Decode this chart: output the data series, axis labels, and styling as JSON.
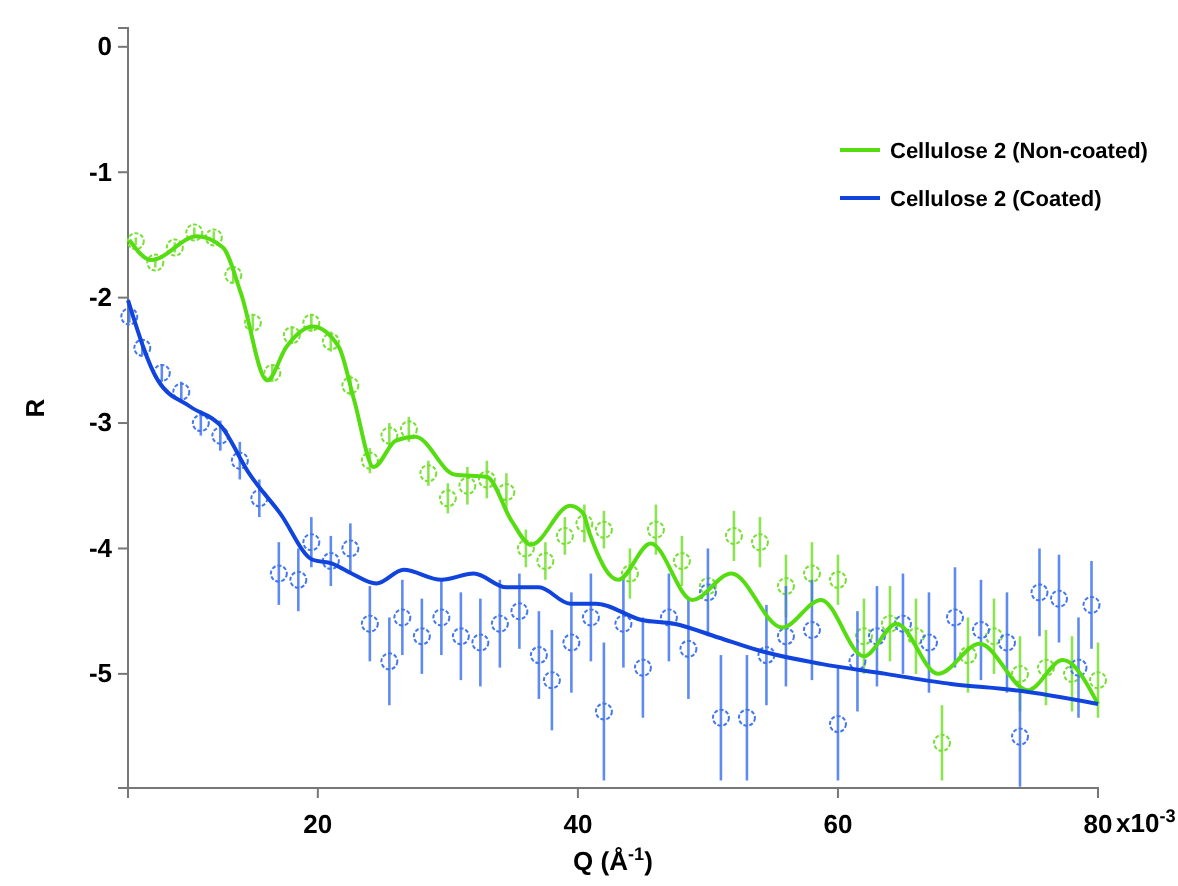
{
  "chart_data": {
    "type": "scatter",
    "xlabel": "Q (Å$^{-1}$)",
    "ylabel": "R",
    "xlim": [
      5.4,
      80
    ],
    "ylim": [
      -5.91,
      0.15
    ],
    "xticks": [
      20,
      40,
      60,
      80
    ],
    "yticks": [
      0,
      -1,
      -2,
      -3,
      -4,
      -5
    ],
    "legend": "top right",
    "annotations": [
      "x10$^{-3}$"
    ],
    "series": [
      {
        "marker": "circle",
        "color": "#77e033",
        "x": [
          6,
          7.5,
          9,
          10.5,
          12,
          13.5,
          15,
          16.5,
          18,
          19.5,
          21,
          22.5,
          24,
          25.5,
          27,
          28.5,
          30,
          31.5,
          33,
          34.5,
          36,
          37.5,
          39,
          40.5,
          42,
          44,
          46,
          48,
          50,
          52,
          54,
          56,
          58,
          60,
          62,
          64,
          66,
          68,
          70,
          72,
          74,
          76,
          78,
          80
        ],
        "values": [
          -1.55,
          -1.72,
          -1.6,
          -1.48,
          -1.52,
          -1.82,
          -2.2,
          -2.6,
          -2.3,
          -2.2,
          -2.35,
          -2.7,
          -3.3,
          -3.1,
          -3.05,
          -3.4,
          -3.6,
          -3.5,
          -3.45,
          -3.55,
          -4.0,
          -4.1,
          -3.9,
          -3.8,
          -3.85,
          -4.2,
          -3.85,
          -4.1,
          -4.3,
          -3.9,
          -3.95,
          -4.3,
          -4.2,
          -4.25,
          -4.7,
          -4.6,
          -4.7,
          -5.55,
          -4.85,
          -4.7,
          -5.0,
          -4.95,
          -5.0,
          -5.05
        ],
        "errors": [
          0.03,
          0.04,
          0.04,
          0.04,
          0.05,
          0.06,
          0.06,
          0.07,
          0.07,
          0.07,
          0.08,
          0.08,
          0.1,
          0.1,
          0.1,
          0.1,
          0.12,
          0.15,
          0.15,
          0.15,
          0.15,
          0.15,
          0.15,
          0.15,
          0.15,
          0.2,
          0.2,
          0.2,
          null,
          0.2,
          0.2,
          0.25,
          0.25,
          0.2,
          0.3,
          0.3,
          0.3,
          0.3,
          0.3,
          0.3,
          0.3,
          0.3,
          0.3,
          0.3
        ]
      },
      {
        "marker": "circle",
        "color": "#4477ee",
        "x": [
          5.5,
          6.5,
          8,
          9.5,
          11,
          12.5,
          14,
          15.5,
          17,
          18.5,
          19.5,
          21,
          22.5,
          24,
          25.5,
          26.5,
          28,
          29.5,
          31,
          32.5,
          34,
          35.5,
          37,
          38,
          39.5,
          41,
          42,
          43.5,
          45,
          47,
          48.5,
          50,
          51,
          53,
          54.5,
          56,
          58,
          60,
          61.5,
          63,
          65,
          67,
          69,
          71,
          73,
          74,
          75.5,
          77,
          78.5,
          79.5
        ],
        "values": [
          -2.15,
          -2.4,
          -2.6,
          -2.75,
          -3.0,
          -3.1,
          -3.3,
          -3.6,
          -4.2,
          -4.25,
          -3.95,
          -4.1,
          -4.0,
          -4.6,
          -4.9,
          -4.55,
          -4.7,
          -4.55,
          -4.7,
          -4.75,
          -4.6,
          -4.5,
          -4.85,
          -5.05,
          -4.75,
          -4.55,
          -5.3,
          -4.6,
          -4.95,
          -4.55,
          -4.8,
          -4.35,
          -5.35,
          -5.35,
          -4.85,
          -4.7,
          -4.65,
          -5.4,
          -4.9,
          -4.7,
          -4.6,
          -4.75,
          -4.55,
          -4.65,
          -4.75,
          -5.5,
          -4.35,
          -4.4,
          -4.95,
          -4.45
        ],
        "errors": [
          0.05,
          0.06,
          0.07,
          0.08,
          0.1,
          0.12,
          0.15,
          0.15,
          0.25,
          0.25,
          0.2,
          0.2,
          0.2,
          0.3,
          0.35,
          0.3,
          0.3,
          0.3,
          0.35,
          0.35,
          0.35,
          0.3,
          0.35,
          0.4,
          0.4,
          0.35,
          0.55,
          0.35,
          0.4,
          0.35,
          0.4,
          0.35,
          0.5,
          0.5,
          0.4,
          0.4,
          0.4,
          0.45,
          0.4,
          0.4,
          0.4,
          0.4,
          0.4,
          0.4,
          0.4,
          0.4,
          0.35,
          0.35,
          0.4,
          0.35
        ]
      },
      {
        "type": "line",
        "name": "Cellulose 2 (Non-coated)",
        "color": "#55dd11",
        "x": [
          5.5,
          7.2,
          10.7,
          12.7,
          14.1,
          16.1,
          17.6,
          19.6,
          21.6,
          22.8,
          24.3,
          26,
          27.5,
          30.5,
          33,
          34.9,
          36.4,
          39.4,
          40.4,
          40.9,
          43.1,
          45.6,
          48.8,
          51.8,
          55.7,
          58.7,
          62,
          64.5,
          67.7,
          70.9,
          74.6,
          77.3,
          80
        ],
        "values": [
          -1.54,
          -1.7,
          -1.51,
          -1.6,
          -1.97,
          -2.66,
          -2.39,
          -2.23,
          -2.39,
          -2.82,
          -3.35,
          -3.14,
          -3.11,
          -3.41,
          -3.43,
          -3.78,
          -3.97,
          -3.66,
          -3.72,
          -3.88,
          -4.25,
          -3.96,
          -4.41,
          -4.2,
          -4.63,
          -4.41,
          -4.86,
          -4.6,
          -5.0,
          -4.76,
          -5.13,
          -4.89,
          -5.24
        ]
      },
      {
        "type": "line",
        "name": "Cellulose 2 (Coated)",
        "color": "#1144dd",
        "x": [
          5.4,
          7.7,
          10.2,
          12.6,
          14.7,
          17.1,
          19.6,
          21.1,
          22.6,
          24.5,
          26.6,
          29.5,
          32,
          34.5,
          37,
          39.4,
          41.4,
          44.9,
          47.4,
          50.8,
          53.8,
          58.7,
          63.7,
          68.7,
          73.6,
          80
        ],
        "values": [
          -2.02,
          -2.66,
          -2.87,
          -3.03,
          -3.4,
          -3.72,
          -4.09,
          -4.12,
          -4.2,
          -4.28,
          -4.17,
          -4.25,
          -4.2,
          -4.31,
          -4.31,
          -4.44,
          -4.44,
          -4.57,
          -4.6,
          -4.71,
          -4.81,
          -4.92,
          -5.0,
          -5.08,
          -5.13,
          -5.24
        ]
      }
    ]
  }
}
